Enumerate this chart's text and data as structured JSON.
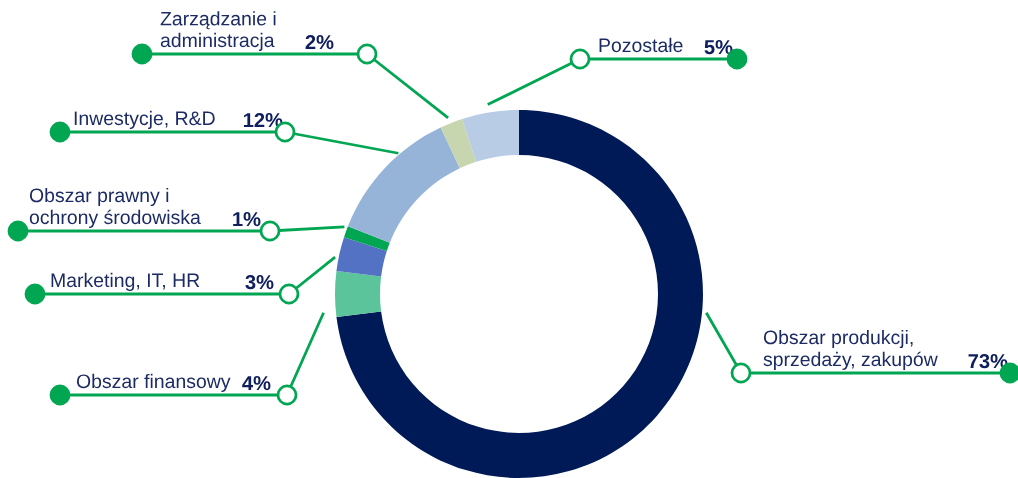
{
  "chart_data": {
    "type": "donut",
    "categories": [
      "Obszar produkcji,\nsprzedaży, zakupów",
      "Obszar finansowy",
      "Marketing, IT, HR",
      "Obszar prawny i\nochrony środowiska",
      "Inwestycje, R&D",
      "Zarządzanie i\nadministracja",
      "Pozostałe"
    ],
    "values": [
      73,
      4,
      3,
      1,
      12,
      2,
      5
    ],
    "colors": [
      "#001a57",
      "#5cc49a",
      "#5472c4",
      "#00a651",
      "#96b4d8",
      "#c8d6b0",
      "#b8cce5"
    ],
    "value_labels": [
      "73%",
      "4%",
      "3%",
      "1%",
      "12%",
      "2%",
      "5%"
    ]
  }
}
